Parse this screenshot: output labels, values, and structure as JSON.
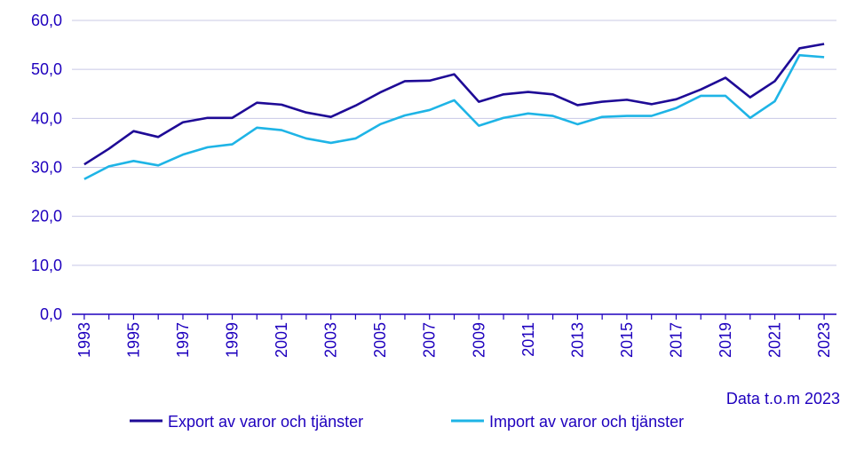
{
  "chart_data": {
    "type": "line",
    "x": [
      1993,
      1994,
      1995,
      1996,
      1997,
      1998,
      1999,
      2000,
      2001,
      2002,
      2003,
      2004,
      2005,
      2006,
      2007,
      2008,
      2009,
      2010,
      2011,
      2012,
      2013,
      2014,
      2015,
      2016,
      2017,
      2018,
      2019,
      2020,
      2021,
      2022,
      2023
    ],
    "x_tick_labels": [
      "1993",
      "1995",
      "1997",
      "1999",
      "2001",
      "2003",
      "2005",
      "2007",
      "2009",
      "2011",
      "2013",
      "2015",
      "2017",
      "2019",
      "2021",
      "2023"
    ],
    "y_tick_labels": [
      "0,0",
      "10,0",
      "20,0",
      "30,0",
      "40,0",
      "50,0",
      "60,0"
    ],
    "ylim": [
      0,
      60
    ],
    "grid": "horizontal",
    "legend_position": "bottom",
    "note": "Data t.o.m 2023",
    "series": [
      {
        "name": "Export av varor och tjänster",
        "color": "#1e0a96",
        "values": [
          30.6,
          33.8,
          37.4,
          36.2,
          39.2,
          40.1,
          40.1,
          43.2,
          42.8,
          41.2,
          40.3,
          42.6,
          45.3,
          47.6,
          47.7,
          49.0,
          43.4,
          44.9,
          45.4,
          44.9,
          42.7,
          43.4,
          43.8,
          42.9,
          43.9,
          45.9,
          48.3,
          44.3,
          47.6,
          54.3,
          55.2
        ]
      },
      {
        "name": "Import av varor och tjänster",
        "color": "#1eb4e6",
        "values": [
          27.6,
          30.2,
          31.3,
          30.4,
          32.6,
          34.1,
          34.7,
          38.1,
          37.6,
          35.9,
          35.0,
          35.9,
          38.8,
          40.6,
          41.7,
          43.7,
          38.5,
          40.1,
          41.0,
          40.5,
          38.8,
          40.3,
          40.5,
          40.5,
          42.1,
          44.6,
          44.6,
          40.1,
          43.5,
          52.9,
          52.5
        ]
      }
    ]
  }
}
